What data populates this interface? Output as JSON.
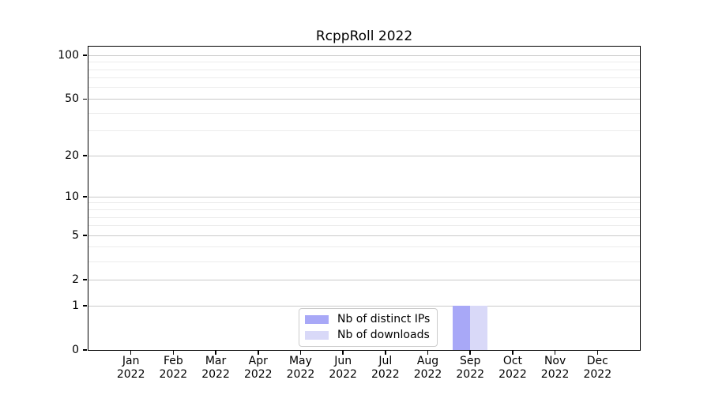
{
  "chart_data": {
    "type": "bar",
    "title": "RcppRoll 2022",
    "categories": [
      {
        "month": "Jan",
        "year": "2022"
      },
      {
        "month": "Feb",
        "year": "2022"
      },
      {
        "month": "Mar",
        "year": "2022"
      },
      {
        "month": "Apr",
        "year": "2022"
      },
      {
        "month": "May",
        "year": "2022"
      },
      {
        "month": "Jun",
        "year": "2022"
      },
      {
        "month": "Jul",
        "year": "2022"
      },
      {
        "month": "Aug",
        "year": "2022"
      },
      {
        "month": "Sep",
        "year": "2022"
      },
      {
        "month": "Oct",
        "year": "2022"
      },
      {
        "month": "Nov",
        "year": "2022"
      },
      {
        "month": "Dec",
        "year": "2022"
      }
    ],
    "series": [
      {
        "name": "Nb of distinct IPs",
        "color": "#a8a8f7",
        "values": [
          0,
          0,
          0,
          0,
          0,
          0,
          0,
          0,
          1,
          0,
          0,
          0
        ]
      },
      {
        "name": "Nb of downloads",
        "color": "#d9d9f8",
        "values": [
          0,
          0,
          0,
          0,
          0,
          0,
          0,
          0,
          1,
          0,
          0,
          0
        ]
      }
    ],
    "xlabel": "",
    "ylabel": "",
    "yscale": "log1p",
    "ylim": [
      0,
      115
    ],
    "yticks": [
      0,
      1,
      2,
      5,
      10,
      20,
      50,
      100
    ],
    "yticks_minor": [
      3,
      4,
      6,
      7,
      8,
      9,
      30,
      40,
      60,
      70,
      80,
      90
    ],
    "grid": true,
    "legend_position": "lower center",
    "colors": {
      "major_grid": "#c9c9c9",
      "minor_grid": "#ececec",
      "spine": "#000000",
      "text": "#000000",
      "background": "#ffffff"
    }
  }
}
